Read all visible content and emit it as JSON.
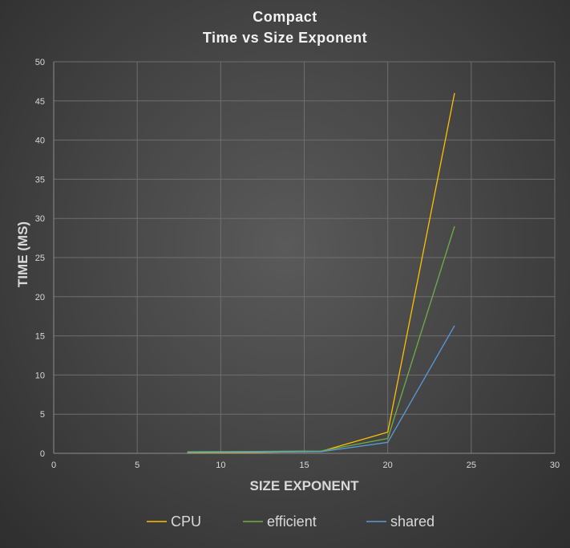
{
  "chart_data": {
    "type": "line",
    "title": "Compact",
    "subtitle": "Time vs Size Exponent",
    "xlabel": "SIZE EXPONENT",
    "ylabel": "TIME (MS)",
    "xlim": [
      0,
      30
    ],
    "ylim": [
      0,
      50
    ],
    "xticks": [
      0,
      5,
      10,
      15,
      20,
      25,
      30
    ],
    "yticks": [
      0,
      5,
      10,
      15,
      20,
      25,
      30,
      35,
      40,
      45,
      50
    ],
    "grid": true,
    "legend_position": "bottom",
    "series": [
      {
        "name": "CPU",
        "color": "#ffc000",
        "x": [
          8,
          12,
          16,
          20,
          24
        ],
        "y": [
          0.05,
          0.1,
          0.25,
          2.7,
          46
        ]
      },
      {
        "name": "efficient",
        "color": "#70ad47",
        "x": [
          8,
          12,
          16,
          20,
          24
        ],
        "y": [
          0.2,
          0.25,
          0.3,
          1.9,
          29
        ]
      },
      {
        "name": "shared",
        "color": "#5b9bd5",
        "x": [
          8,
          12,
          16,
          20,
          24
        ],
        "y": [
          0.1,
          0.15,
          0.2,
          1.4,
          16.3
        ]
      }
    ]
  }
}
